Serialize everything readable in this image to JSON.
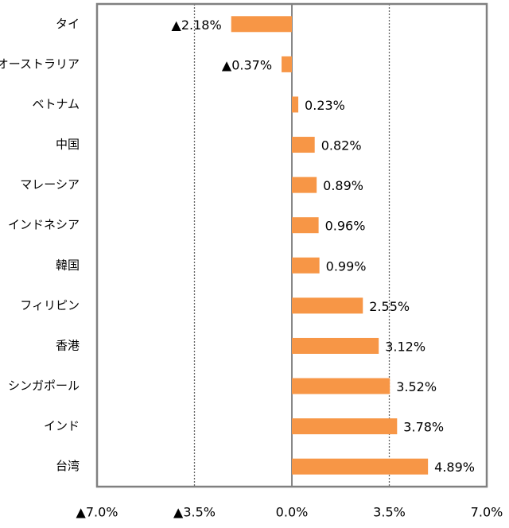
{
  "chart_data": {
    "type": "bar",
    "orientation": "horizontal",
    "categories": [
      "タイ",
      "オーストラリア",
      "ベトナム",
      "中国",
      "マレーシア",
      "インドネシア",
      "韓国",
      "フィリピン",
      "香港",
      "シンガポール",
      "インド",
      "台湾"
    ],
    "values": [
      -2.18,
      -0.37,
      0.23,
      0.82,
      0.89,
      0.96,
      0.99,
      2.55,
      3.12,
      3.52,
      3.78,
      4.89
    ],
    "value_labels": [
      "▲2.18%",
      "▲0.37%",
      "0.23%",
      "0.82%",
      "0.89%",
      "0.96%",
      "0.99%",
      "2.55%",
      "3.12%",
      "3.52%",
      "3.78%",
      "4.89%"
    ],
    "color": "#f79646",
    "xlim": [
      -7,
      7
    ],
    "xticks": [
      {
        "value": -7,
        "label": "▲7.0%"
      },
      {
        "value": -3.5,
        "label": "▲3.5%"
      },
      {
        "value": 0,
        "label": "0.0%"
      },
      {
        "value": 3.5,
        "label": "3.5%"
      },
      {
        "value": 7,
        "label": "7.0%"
      }
    ],
    "grid": true
  }
}
